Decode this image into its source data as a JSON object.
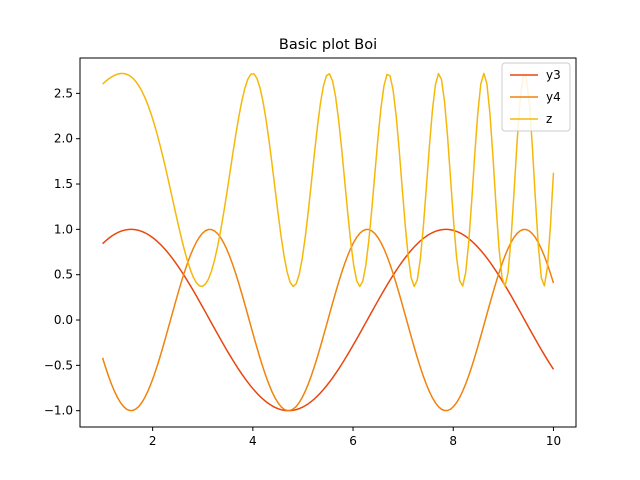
{
  "chart_data": {
    "type": "line",
    "title": "Basic plot Boi",
    "xlabel": "",
    "ylabel": "",
    "xlim": [
      0.55,
      10.45
    ],
    "ylim": [
      -1.18,
      2.89
    ],
    "xticks": [
      2,
      4,
      6,
      8,
      10
    ],
    "yticks": [
      -1.0,
      -0.5,
      0.0,
      0.5,
      1.0,
      1.5,
      2.0,
      2.5
    ],
    "grid": false,
    "legend_position": "top-right",
    "series": [
      {
        "name": "y3",
        "color": "#e8470f",
        "function": "sin(x)",
        "x_range": [
          1,
          10
        ],
        "samples": 150
      },
      {
        "name": "y4",
        "color": "#f0820e",
        "function": "cos(2x)",
        "x_range": [
          1,
          10
        ],
        "samples": 150
      },
      {
        "name": "z",
        "color": "#f5b80a",
        "function": "sin(x^2/4+0.6)+1.55*sin(... ) approximation",
        "x_range": [
          1,
          10
        ],
        "samples": 150,
        "min": 0.37,
        "max": 2.72
      }
    ]
  }
}
